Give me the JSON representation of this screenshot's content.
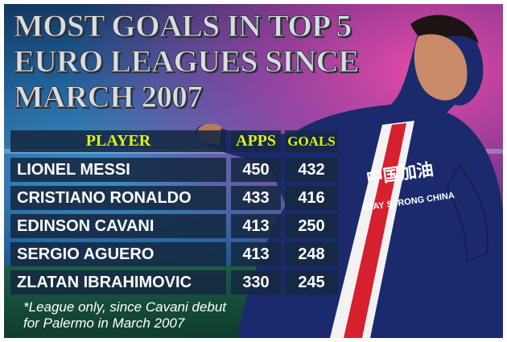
{
  "title": [
    "MOST GOALS IN TOP 5",
    "EURO LEAGUES SINCE",
    "MARCH 2007"
  ],
  "table": {
    "headers": [
      "PLAYER",
      "APPS",
      "GOALS"
    ],
    "rows": [
      [
        "LIONEL MESSI",
        "450",
        "432"
      ],
      [
        "CRISTIANO RONALDO",
        "433",
        "416"
      ],
      [
        "EDINSON CAVANI",
        "413",
        "250"
      ],
      [
        "SERGIO AGUERO",
        "413",
        "248"
      ],
      [
        "ZLATAN IBRAHIMOVIC",
        "330",
        "245"
      ]
    ]
  },
  "footnote": [
    "*League only, since Cavani debut",
    "for Palermo in March 2007"
  ],
  "shirt": {
    "line1": "中国加油",
    "line2": "STAY STRONG CHINA"
  },
  "colors": {
    "header_text": "#d9f21a",
    "row_bg": "#142841",
    "accent_pink": "#e64aa8",
    "jersey": "#1a2a6c",
    "stripe": "#d6202f"
  }
}
